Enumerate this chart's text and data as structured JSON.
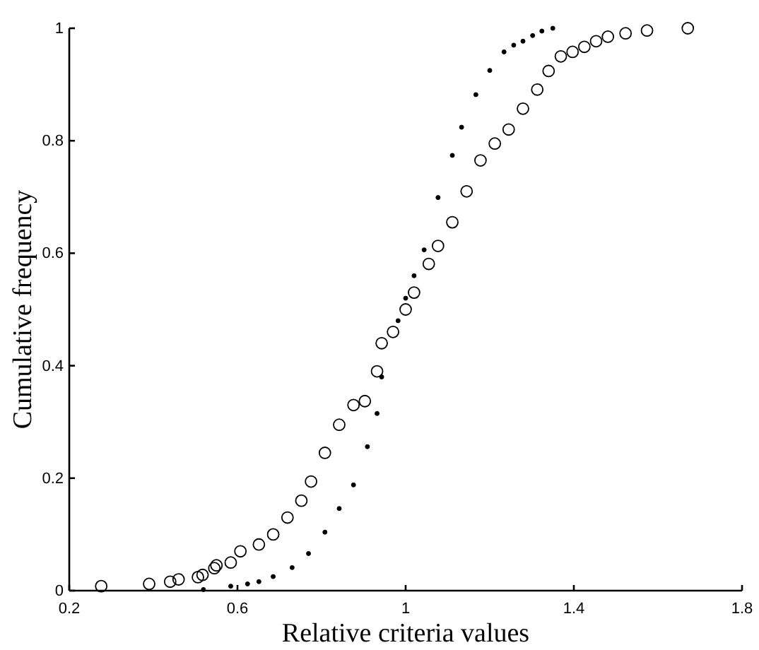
{
  "chart_data": {
    "type": "scatter",
    "xlabel": "Relative criteria values",
    "ylabel": "Cumulative frequency",
    "xlim": [
      0.2,
      1.8
    ],
    "xticks": [
      0.2,
      0.6,
      1,
      1.4,
      1.8
    ],
    "ylim": [
      0,
      1
    ],
    "yticks": [
      0,
      0.2,
      0.4,
      0.6,
      0.8,
      1
    ],
    "grid": false,
    "marker": "circle",
    "series": [
      {
        "color": "#000000",
        "x": [
          0.276,
          0.39,
          0.44,
          0.46,
          0.506,
          0.517,
          0.545,
          0.55,
          0.584,
          0.607,
          0.651,
          0.685,
          0.719,
          0.752,
          0.775,
          0.808,
          0.842,
          0.876,
          0.903,
          0.932,
          0.943,
          0.97,
          1.0,
          1.02,
          1.055,
          1.077,
          1.111,
          1.145,
          1.178,
          1.212,
          1.245,
          1.279,
          1.313,
          1.34,
          1.369,
          1.397,
          1.425,
          1.453,
          1.481,
          1.523,
          1.574,
          1.671
        ],
        "values": [
          0.008,
          0.012,
          0.016,
          0.02,
          0.024,
          0.028,
          0.04,
          0.045,
          0.05,
          0.07,
          0.082,
          0.1,
          0.13,
          0.16,
          0.194,
          0.245,
          0.295,
          0.33,
          0.337,
          0.39,
          0.44,
          0.46,
          0.5,
          0.53,
          0.581,
          0.613,
          0.655,
          0.71,
          0.765,
          0.795,
          0.82,
          0.857,
          0.891,
          0.924,
          0.95,
          0.958,
          0.967,
          0.977,
          0.985,
          0.991,
          0.996,
          1.0
        ]
      },
      {
        "color": "#000000",
        "x": [
          0.519,
          0.584,
          0.624,
          0.651,
          0.685,
          0.73,
          0.769,
          0.808,
          0.842,
          0.876,
          0.909,
          0.932,
          0.943,
          0.982,
          1.0,
          1.02,
          1.044,
          1.077,
          1.111,
          1.133,
          1.167,
          1.2,
          1.234,
          1.257,
          1.279,
          1.302,
          1.324,
          1.35
        ],
        "values": [
          0.002,
          0.008,
          0.012,
          0.016,
          0.025,
          0.041,
          0.066,
          0.104,
          0.146,
          0.188,
          0.256,
          0.315,
          0.38,
          0.48,
          0.52,
          0.56,
          0.606,
          0.699,
          0.774,
          0.824,
          0.882,
          0.925,
          0.958,
          0.97,
          0.977,
          0.987,
          0.995,
          1.0
        ]
      }
    ]
  }
}
